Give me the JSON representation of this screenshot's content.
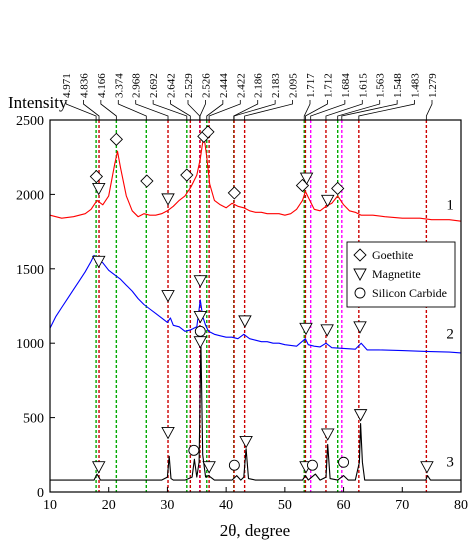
{
  "chart_data": {
    "type": "line",
    "title": "",
    "xlabel": "2θ, degree",
    "ylabel": "Intensity",
    "xlim": [
      10,
      80
    ],
    "ylim": [
      0,
      2500
    ],
    "x_ticks": [
      10,
      20,
      30,
      40,
      50,
      60,
      70,
      80
    ],
    "y_ticks": [
      0,
      500,
      1000,
      1500,
      2000,
      2500
    ],
    "grid": false,
    "legend_position": "middle-right",
    "series": [
      {
        "name": "1",
        "color": "#ff0000",
        "points": [
          [
            10,
            1860
          ],
          [
            12,
            1840
          ],
          [
            14,
            1850
          ],
          [
            16,
            1870
          ],
          [
            17,
            1900
          ],
          [
            18,
            1960
          ],
          [
            19,
            1930
          ],
          [
            20,
            1990
          ],
          [
            21,
            2200
          ],
          [
            21.5,
            2290
          ],
          [
            22,
            2180
          ],
          [
            23,
            1990
          ],
          [
            24,
            1890
          ],
          [
            25,
            1850
          ],
          [
            26,
            1870
          ],
          [
            27,
            1860
          ],
          [
            28,
            1860
          ],
          [
            29,
            1870
          ],
          [
            30,
            1890
          ],
          [
            31,
            1920
          ],
          [
            32,
            1960
          ],
          [
            33,
            1990
          ],
          [
            34,
            2050
          ],
          [
            35,
            2130
          ],
          [
            35.6,
            2240
          ],
          [
            36.2,
            2400
          ],
          [
            36.7,
            2250
          ],
          [
            37.2,
            2070
          ],
          [
            38,
            1960
          ],
          [
            39,
            1930
          ],
          [
            40,
            1910
          ],
          [
            41,
            1940
          ],
          [
            42,
            1920
          ],
          [
            43,
            1910
          ],
          [
            44,
            1890
          ],
          [
            45,
            1880
          ],
          [
            46,
            1880
          ],
          [
            47,
            1870
          ],
          [
            48,
            1870
          ],
          [
            49,
            1870
          ],
          [
            50,
            1860
          ],
          [
            51,
            1870
          ],
          [
            52,
            1900
          ],
          [
            53,
            1960
          ],
          [
            53.5,
            2020
          ],
          [
            54,
            1980
          ],
          [
            55,
            1900
          ],
          [
            56,
            1890
          ],
          [
            57,
            1920
          ],
          [
            58,
            1940
          ],
          [
            59,
            1990
          ],
          [
            60,
            1930
          ],
          [
            61,
            1890
          ],
          [
            62,
            1880
          ],
          [
            63,
            1860
          ],
          [
            65,
            1860
          ],
          [
            67,
            1850
          ],
          [
            70,
            1840
          ],
          [
            73,
            1840
          ],
          [
            75,
            1830
          ],
          [
            78,
            1830
          ],
          [
            80,
            1820
          ]
        ]
      },
      {
        "name": "2",
        "color": "#0000ff",
        "points": [
          [
            10,
            1100
          ],
          [
            11,
            1180
          ],
          [
            12,
            1240
          ],
          [
            13,
            1300
          ],
          [
            14,
            1360
          ],
          [
            15,
            1420
          ],
          [
            16,
            1480
          ],
          [
            17,
            1550
          ],
          [
            17.5,
            1590
          ],
          [
            18,
            1570
          ],
          [
            19,
            1540
          ],
          [
            20,
            1490
          ],
          [
            21,
            1460
          ],
          [
            22,
            1430
          ],
          [
            23,
            1390
          ],
          [
            24,
            1350
          ],
          [
            25,
            1300
          ],
          [
            26,
            1260
          ],
          [
            27,
            1230
          ],
          [
            28,
            1200
          ],
          [
            29,
            1170
          ],
          [
            30,
            1140
          ],
          [
            30.5,
            1170
          ],
          [
            31,
            1120
          ],
          [
            32,
            1110
          ],
          [
            33,
            1080
          ],
          [
            34,
            1090
          ],
          [
            35,
            1110
          ],
          [
            35.6,
            1290
          ],
          [
            36,
            1180
          ],
          [
            36.5,
            1120
          ],
          [
            37,
            1080
          ],
          [
            38,
            1060
          ],
          [
            39,
            1050
          ],
          [
            40,
            1040
          ],
          [
            41,
            1040
          ],
          [
            42,
            1030
          ],
          [
            43,
            1060
          ],
          [
            44,
            1030
          ],
          [
            45,
            1020
          ],
          [
            46,
            1010
          ],
          [
            47,
            1010
          ],
          [
            48,
            1000
          ],
          [
            49,
            1000
          ],
          [
            50,
            990
          ],
          [
            52,
            980
          ],
          [
            53.5,
            1030
          ],
          [
            54,
            990
          ],
          [
            55,
            980
          ],
          [
            56,
            975
          ],
          [
            57,
            1000
          ],
          [
            58,
            970
          ],
          [
            60,
            965
          ],
          [
            62,
            960
          ],
          [
            63,
            1000
          ],
          [
            64,
            955
          ],
          [
            66,
            955
          ],
          [
            70,
            950
          ],
          [
            74,
            945
          ],
          [
            78,
            940
          ],
          [
            80,
            935
          ]
        ]
      },
      {
        "name": "3",
        "color": "#000000",
        "points": [
          [
            10,
            80
          ],
          [
            15,
            80
          ],
          [
            17.5,
            80
          ],
          [
            18,
            120
          ],
          [
            18.6,
            80
          ],
          [
            20,
            80
          ],
          [
            25,
            80
          ],
          [
            29,
            80
          ],
          [
            30,
            100
          ],
          [
            30.3,
            240
          ],
          [
            30.6,
            90
          ],
          [
            31,
            80
          ],
          [
            33,
            80
          ],
          [
            34.2,
            100
          ],
          [
            34.6,
            220
          ],
          [
            35,
            100
          ],
          [
            35.4,
            200
          ],
          [
            35.7,
            1010
          ],
          [
            36,
            250
          ],
          [
            36.5,
            100
          ],
          [
            37,
            110
          ],
          [
            38,
            80
          ],
          [
            41,
            80
          ],
          [
            41.8,
            110
          ],
          [
            42.5,
            80
          ],
          [
            43,
            100
          ],
          [
            43.4,
            290
          ],
          [
            43.8,
            90
          ],
          [
            45,
            80
          ],
          [
            50,
            80
          ],
          [
            53,
            80
          ],
          [
            53.5,
            110
          ],
          [
            54,
            80
          ],
          [
            55.2,
            120
          ],
          [
            56,
            80
          ],
          [
            57,
            100
          ],
          [
            57.3,
            320
          ],
          [
            57.7,
            90
          ],
          [
            59,
            80
          ],
          [
            60,
            110
          ],
          [
            60.8,
            80
          ],
          [
            62,
            80
          ],
          [
            62.7,
            200
          ],
          [
            62.9,
            460
          ],
          [
            63.2,
            200
          ],
          [
            63.6,
            80
          ],
          [
            65,
            80
          ],
          [
            70,
            80
          ],
          [
            74,
            80
          ],
          [
            74.3,
            110
          ],
          [
            74.8,
            80
          ],
          [
            78,
            80
          ],
          [
            80,
            80
          ]
        ]
      }
    ],
    "d_spacings": [
      {
        "label": "4.971",
        "x": 17.85,
        "color": "#00aa00"
      },
      {
        "label": "4.836",
        "x": 18.35,
        "color": "#cc0000"
      },
      {
        "label": "4.166",
        "x": 21.3,
        "color": "#00aa00"
      },
      {
        "label": "3.374",
        "x": 26.4,
        "color": "#00aa00"
      },
      {
        "label": "2.968",
        "x": 30.1,
        "color": "#cc0000"
      },
      {
        "label": "2.692",
        "x": 33.3,
        "color": "#00aa00"
      },
      {
        "label": "2.642",
        "x": 33.9,
        "color": "#cc0000"
      },
      {
        "label": "2.529",
        "x": 35.5,
        "color": "#ff00ff"
      },
      {
        "label": "2.526",
        "x": 35.55,
        "color": "#cc0000"
      },
      {
        "label": "2.444",
        "x": 36.7,
        "color": "#00aa00"
      },
      {
        "label": "2.422",
        "x": 37.1,
        "color": "#cc0000"
      },
      {
        "label": "2.186",
        "x": 41.3,
        "color": "#00aa00"
      },
      {
        "label": "2.183",
        "x": 41.35,
        "color": "#cc0000"
      },
      {
        "label": "2.095",
        "x": 43.15,
        "color": "#cc0000"
      },
      {
        "label": "1.717",
        "x": 53.3,
        "color": "#00aa00"
      },
      {
        "label": "1.712",
        "x": 53.5,
        "color": "#cc0000"
      },
      {
        "label": "1.684",
        "x": 54.4,
        "color": "#ff00ff"
      },
      {
        "label": "1.615",
        "x": 57.0,
        "color": "#cc0000"
      },
      {
        "label": "1.563",
        "x": 59.0,
        "color": "#00aa00"
      },
      {
        "label": "1.548",
        "x": 59.7,
        "color": "#ff00ff"
      },
      {
        "label": "1.483",
        "x": 62.6,
        "color": "#cc0000"
      },
      {
        "label": "1.279",
        "x": 74.1,
        "color": "#cc0000"
      }
    ],
    "markers": [
      {
        "type": "goethite",
        "x": 17.9,
        "y": 2120
      },
      {
        "type": "goethite",
        "x": 21.3,
        "y": 2370
      },
      {
        "type": "goethite",
        "x": 26.5,
        "y": 2090
      },
      {
        "type": "goethite",
        "x": 33.3,
        "y": 2130
      },
      {
        "type": "goethite",
        "x": 36.2,
        "y": 2390
      },
      {
        "type": "goethite",
        "x": 36.9,
        "y": 2420
      },
      {
        "type": "goethite",
        "x": 41.4,
        "y": 2010
      },
      {
        "type": "goethite",
        "x": 53.0,
        "y": 2060
      },
      {
        "type": "goethite",
        "x": 59.0,
        "y": 2040
      },
      {
        "type": "magnetite",
        "x": 18.3,
        "y": 2040
      },
      {
        "type": "magnetite",
        "x": 30.1,
        "y": 1970
      },
      {
        "type": "magnetite",
        "x": 53.7,
        "y": 2110
      },
      {
        "type": "magnetite",
        "x": 57.3,
        "y": 1960
      },
      {
        "type": "magnetite",
        "x": 18.3,
        "y": 1550
      },
      {
        "type": "magnetite",
        "x": 30.1,
        "y": 1320
      },
      {
        "type": "magnetite",
        "x": 35.6,
        "y": 1420
      },
      {
        "type": "magnetite",
        "x": 35.6,
        "y": 1010
      },
      {
        "type": "magnetite",
        "x": 43.2,
        "y": 1150
      },
      {
        "type": "magnetite",
        "x": 53.6,
        "y": 1100
      },
      {
        "type": "magnetite",
        "x": 57.2,
        "y": 1090
      },
      {
        "type": "magnetite",
        "x": 62.8,
        "y": 1110
      },
      {
        "type": "magnetite",
        "x": 18.3,
        "y": 170
      },
      {
        "type": "magnetite",
        "x": 30.1,
        "y": 400
      },
      {
        "type": "magnetite",
        "x": 35.6,
        "y": 1180
      },
      {
        "type": "magnetite",
        "x": 37.1,
        "y": 170
      },
      {
        "type": "magnetite",
        "x": 43.4,
        "y": 340
      },
      {
        "type": "magnetite",
        "x": 53.6,
        "y": 170
      },
      {
        "type": "magnetite",
        "x": 57.3,
        "y": 390
      },
      {
        "type": "magnetite",
        "x": 62.9,
        "y": 520
      },
      {
        "type": "magnetite",
        "x": 74.2,
        "y": 170
      },
      {
        "type": "silicon-carbide",
        "x": 35.6,
        "y": 1080
      },
      {
        "type": "silicon-carbide",
        "x": 34.5,
        "y": 280
      },
      {
        "type": "silicon-carbide",
        "x": 41.4,
        "y": 180
      },
      {
        "type": "silicon-carbide",
        "x": 54.7,
        "y": 180
      },
      {
        "type": "silicon-carbide",
        "x": 60.0,
        "y": 200
      }
    ],
    "curve_labels": [
      {
        "text": "1",
        "x": 77.5,
        "y": 1900
      },
      {
        "text": "2",
        "x": 77.5,
        "y": 1030
      },
      {
        "text": "3",
        "x": 77.5,
        "y": 170
      }
    ],
    "legend": [
      {
        "symbol": "goethite",
        "label": "Goethite"
      },
      {
        "symbol": "magnetite",
        "label": "Magnetite"
      },
      {
        "symbol": "silicon-carbide",
        "label": "Silicon Carbide"
      }
    ]
  }
}
